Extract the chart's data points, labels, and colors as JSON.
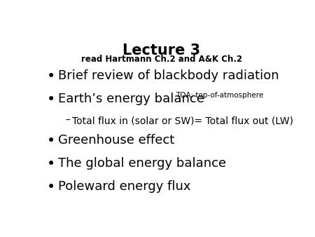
{
  "title": "Lecture 3",
  "subtitle": "read Hartmann Ch.2 and A&K Ch.2",
  "background_color": "#ffffff",
  "title_fontsize": 15,
  "subtitle_fontsize": 8.5,
  "bullet_fontsize": 13,
  "sub_bullet_fontsize": 10,
  "toa_fontsize": 7.5,
  "bullet_color": "#000000",
  "bullets": [
    {
      "text": "Brief review of blackbody radiation",
      "level": 0
    },
    {
      "text": "Earth’s energy balance",
      "level": 0,
      "inline": "TOA: top-of-atmosphere"
    },
    {
      "text": "Total flux in (solar or SW)= Total flux out (LW)",
      "level": 1
    },
    {
      "text": "Greenhouse effect",
      "level": 0
    },
    {
      "text": "The global energy balance",
      "level": 0
    },
    {
      "text": "Poleward energy flux",
      "level": 0
    }
  ]
}
